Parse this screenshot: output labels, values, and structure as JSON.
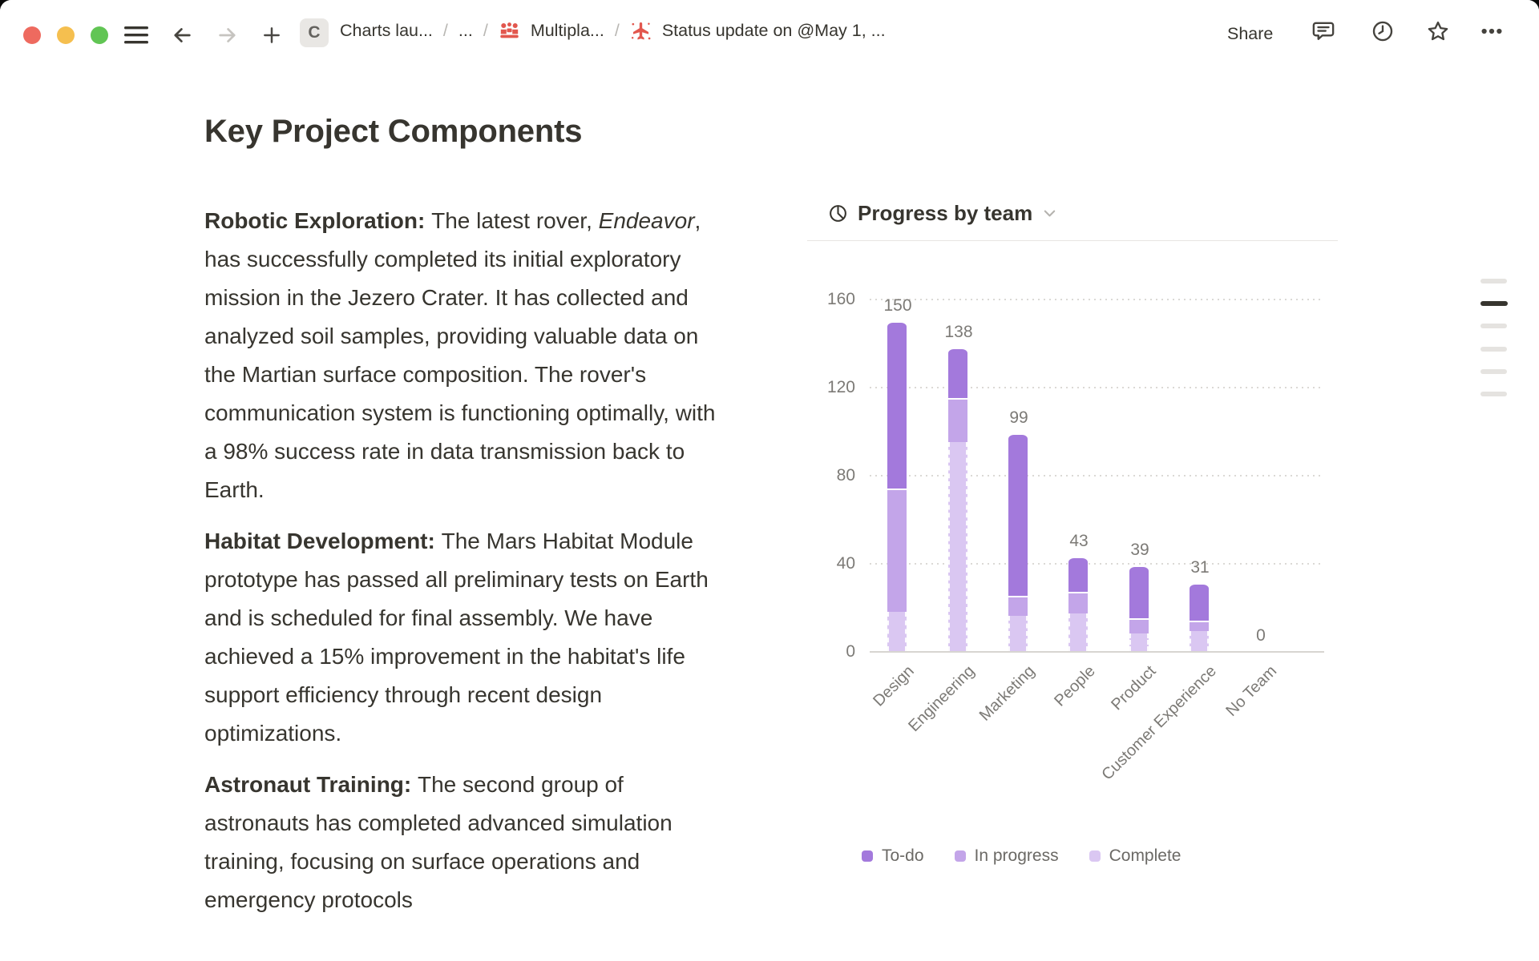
{
  "topbar": {
    "workspace_chip": "C",
    "crumb1": "Charts lau...",
    "ellipsis": "...",
    "separator": "/",
    "crumb2": "Multipla...",
    "crumb3": "Status update on @May 1, ...",
    "share": "Share"
  },
  "document": {
    "title": "Key Project Components",
    "paragraphs": [
      {
        "runs": [
          {
            "text": "Robotic Exploration: ",
            "bold": true
          },
          {
            "text": "The latest rover, "
          },
          {
            "text": "Endeavor",
            "italic": true
          },
          {
            "text": ", has successfully completed its initial exploratory mission in the Jezero Crater. It has collected and analyzed soil samples, providing valuable data on the Martian surface composition. The rover's communication system is functioning optimally, with a 98% success rate in data transmission back to Earth."
          }
        ]
      },
      {
        "runs": [
          {
            "text": "Habitat Development: ",
            "bold": true
          },
          {
            "text": "The Mars Habitat Module prototype has passed all preliminary tests on Earth and is scheduled for final assembly. We have achieved a 15% improvement in the habitat's life support efficiency through recent design optimizations."
          }
        ]
      },
      {
        "runs": [
          {
            "text": "Astronaut Training: ",
            "bold": true
          },
          {
            "text": "The second group of astronauts has completed advanced simulation training, focusing on surface operations and emergency protocols"
          }
        ]
      }
    ]
  },
  "chart": {
    "title": "Progress by team"
  },
  "chart_data": {
    "type": "bar",
    "stacked": true,
    "title": "Progress by team",
    "categories": [
      "Design",
      "Engineering",
      "Marketing",
      "People",
      "Product",
      "Customer Experience",
      "No Team"
    ],
    "totals": [
      150,
      138,
      99,
      43,
      39,
      31,
      0
    ],
    "series": [
      {
        "name": "To-do",
        "color": "#a379dc",
        "values": [
          76,
          23,
          74,
          16,
          24,
          17,
          0
        ]
      },
      {
        "name": "In progress",
        "color": "#c3a5e9",
        "values": [
          56,
          20,
          9,
          10,
          7,
          5,
          0
        ]
      },
      {
        "name": "Complete",
        "color": "#dac7f2",
        "values": [
          18,
          95,
          16,
          17,
          8,
          9,
          0
        ]
      }
    ],
    "yticks": [
      0,
      40,
      80,
      120,
      160
    ],
    "ylim": [
      0,
      160
    ],
    "xlabel": "",
    "ylabel": "",
    "grid": "dotted-horizontal",
    "legend_position": "bottom",
    "bar_value_labels": true
  },
  "minimap": {
    "items": [
      {
        "active": false
      },
      {
        "active": true
      },
      {
        "active": false
      },
      {
        "active": false
      },
      {
        "active": false
      },
      {
        "active": false
      }
    ]
  }
}
